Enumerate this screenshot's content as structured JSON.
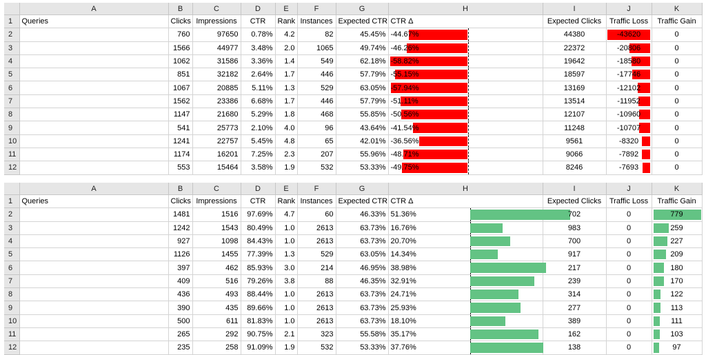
{
  "column_letters": [
    "A",
    "B",
    "C",
    "D",
    "E",
    "F",
    "G",
    "H",
    "I",
    "J",
    "K"
  ],
  "headers": [
    "Queries",
    "Clicks",
    "Impressions",
    "CTR",
    "Rank",
    "Instances",
    "Expected CTR",
    "CTR Δ",
    "Expected Clicks",
    "Traffic Loss",
    "Traffic Gain"
  ],
  "colors": {
    "negative_bar": "#ff0000",
    "positive_bar": "#63c384",
    "header_bg": "#e6e6e6",
    "gridline": "#d4d4d4"
  },
  "top_table": {
    "rows": [
      {
        "row": "2",
        "clicks": "760",
        "impressions": "97650",
        "ctr": "0.78%",
        "rank": "4.2",
        "instances": "82",
        "expected_ctr": "45.45%",
        "ctr_delta": "-44.67%",
        "expected_clicks": "44380",
        "traffic_loss": "-43620",
        "traffic_gain": "0",
        "delta_value": -44.67,
        "loss_value": -43620
      },
      {
        "row": "3",
        "clicks": "1566",
        "impressions": "44977",
        "ctr": "3.48%",
        "rank": "2.0",
        "instances": "1065",
        "expected_ctr": "49.74%",
        "ctr_delta": "-46.26%",
        "expected_clicks": "22372",
        "traffic_loss": "-20806",
        "traffic_gain": "0",
        "delta_value": -46.26,
        "loss_value": -20806
      },
      {
        "row": "4",
        "clicks": "1062",
        "impressions": "31586",
        "ctr": "3.36%",
        "rank": "1.4",
        "instances": "549",
        "expected_ctr": "62.18%",
        "ctr_delta": "-58.82%",
        "expected_clicks": "19642",
        "traffic_loss": "-18580",
        "traffic_gain": "0",
        "delta_value": -58.82,
        "loss_value": -18580
      },
      {
        "row": "5",
        "clicks": "851",
        "impressions": "32182",
        "ctr": "2.64%",
        "rank": "1.7",
        "instances": "446",
        "expected_ctr": "57.79%",
        "ctr_delta": "-55.15%",
        "expected_clicks": "18597",
        "traffic_loss": "-17746",
        "traffic_gain": "0",
        "delta_value": -55.15,
        "loss_value": -17746
      },
      {
        "row": "6",
        "clicks": "1067",
        "impressions": "20885",
        "ctr": "5.11%",
        "rank": "1.3",
        "instances": "529",
        "expected_ctr": "63.05%",
        "ctr_delta": "-57.94%",
        "expected_clicks": "13169",
        "traffic_loss": "-12102",
        "traffic_gain": "0",
        "delta_value": -57.94,
        "loss_value": -12102
      },
      {
        "row": "7",
        "clicks": "1562",
        "impressions": "23386",
        "ctr": "6.68%",
        "rank": "1.7",
        "instances": "446",
        "expected_ctr": "57.79%",
        "ctr_delta": "-51.11%",
        "expected_clicks": "13514",
        "traffic_loss": "-11952",
        "traffic_gain": "0",
        "delta_value": -51.11,
        "loss_value": -11952
      },
      {
        "row": "8",
        "clicks": "1147",
        "impressions": "21680",
        "ctr": "5.29%",
        "rank": "1.8",
        "instances": "468",
        "expected_ctr": "55.85%",
        "ctr_delta": "-50.56%",
        "expected_clicks": "12107",
        "traffic_loss": "-10960",
        "traffic_gain": "0",
        "delta_value": -50.56,
        "loss_value": -10960
      },
      {
        "row": "9",
        "clicks": "541",
        "impressions": "25773",
        "ctr": "2.10%",
        "rank": "4.0",
        "instances": "96",
        "expected_ctr": "43.64%",
        "ctr_delta": "-41.54%",
        "expected_clicks": "11248",
        "traffic_loss": "-10707",
        "traffic_gain": "0",
        "delta_value": -41.54,
        "loss_value": -10707
      },
      {
        "row": "10",
        "clicks": "1241",
        "impressions": "22757",
        "ctr": "5.45%",
        "rank": "4.8",
        "instances": "65",
        "expected_ctr": "42.01%",
        "ctr_delta": "-36.56%",
        "expected_clicks": "9561",
        "traffic_loss": "-8320",
        "traffic_gain": "0",
        "delta_value": -36.56,
        "loss_value": -8320
      },
      {
        "row": "11",
        "clicks": "1174",
        "impressions": "16201",
        "ctr": "7.25%",
        "rank": "2.3",
        "instances": "207",
        "expected_ctr": "55.96%",
        "ctr_delta": "-48.71%",
        "expected_clicks": "9066",
        "traffic_loss": "-7892",
        "traffic_gain": "0",
        "delta_value": -48.71,
        "loss_value": -7892
      },
      {
        "row": "12",
        "clicks": "553",
        "impressions": "15464",
        "ctr": "3.58%",
        "rank": "1.9",
        "instances": "532",
        "expected_ctr": "53.33%",
        "ctr_delta": "-49.75%",
        "expected_clicks": "8246",
        "traffic_loss": "-7693",
        "traffic_gain": "0",
        "delta_value": -49.75,
        "loss_value": -7693
      }
    ]
  },
  "bottom_table": {
    "rows": [
      {
        "row": "2",
        "clicks": "1481",
        "impressions": "1516",
        "ctr": "97.69%",
        "rank": "4.7",
        "instances": "60",
        "expected_ctr": "46.33%",
        "ctr_delta": "51.36%",
        "expected_clicks": "702",
        "traffic_loss": "0",
        "traffic_gain": "779",
        "delta_value": 51.36,
        "gain_value": 779
      },
      {
        "row": "3",
        "clicks": "1242",
        "impressions": "1543",
        "ctr": "80.49%",
        "rank": "1.0",
        "instances": "2613",
        "expected_ctr": "63.73%",
        "ctr_delta": "16.76%",
        "expected_clicks": "983",
        "traffic_loss": "0",
        "traffic_gain": "259",
        "delta_value": 16.76,
        "gain_value": 259
      },
      {
        "row": "4",
        "clicks": "927",
        "impressions": "1098",
        "ctr": "84.43%",
        "rank": "1.0",
        "instances": "2613",
        "expected_ctr": "63.73%",
        "ctr_delta": "20.70%",
        "expected_clicks": "700",
        "traffic_loss": "0",
        "traffic_gain": "227",
        "delta_value": 20.7,
        "gain_value": 227
      },
      {
        "row": "5",
        "clicks": "1126",
        "impressions": "1455",
        "ctr": "77.39%",
        "rank": "1.3",
        "instances": "529",
        "expected_ctr": "63.05%",
        "ctr_delta": "14.34%",
        "expected_clicks": "917",
        "traffic_loss": "0",
        "traffic_gain": "209",
        "delta_value": 14.34,
        "gain_value": 209
      },
      {
        "row": "6",
        "clicks": "397",
        "impressions": "462",
        "ctr": "85.93%",
        "rank": "3.0",
        "instances": "214",
        "expected_ctr": "46.95%",
        "ctr_delta": "38.98%",
        "expected_clicks": "217",
        "traffic_loss": "0",
        "traffic_gain": "180",
        "delta_value": 38.98,
        "gain_value": 180
      },
      {
        "row": "7",
        "clicks": "409",
        "impressions": "516",
        "ctr": "79.26%",
        "rank": "3.8",
        "instances": "88",
        "expected_ctr": "46.35%",
        "ctr_delta": "32.91%",
        "expected_clicks": "239",
        "traffic_loss": "0",
        "traffic_gain": "170",
        "delta_value": 32.91,
        "gain_value": 170
      },
      {
        "row": "8",
        "clicks": "436",
        "impressions": "493",
        "ctr": "88.44%",
        "rank": "1.0",
        "instances": "2613",
        "expected_ctr": "63.73%",
        "ctr_delta": "24.71%",
        "expected_clicks": "314",
        "traffic_loss": "0",
        "traffic_gain": "122",
        "delta_value": 24.71,
        "gain_value": 122
      },
      {
        "row": "9",
        "clicks": "390",
        "impressions": "435",
        "ctr": "89.66%",
        "rank": "1.0",
        "instances": "2613",
        "expected_ctr": "63.73%",
        "ctr_delta": "25.93%",
        "expected_clicks": "277",
        "traffic_loss": "0",
        "traffic_gain": "113",
        "delta_value": 25.93,
        "gain_value": 113
      },
      {
        "row": "10",
        "clicks": "500",
        "impressions": "611",
        "ctr": "81.83%",
        "rank": "1.0",
        "instances": "2613",
        "expected_ctr": "63.73%",
        "ctr_delta": "18.10%",
        "expected_clicks": "389",
        "traffic_loss": "0",
        "traffic_gain": "111",
        "delta_value": 18.1,
        "gain_value": 111
      },
      {
        "row": "11",
        "clicks": "265",
        "impressions": "292",
        "ctr": "90.75%",
        "rank": "2.1",
        "instances": "323",
        "expected_ctr": "55.58%",
        "ctr_delta": "35.17%",
        "expected_clicks": "162",
        "traffic_loss": "0",
        "traffic_gain": "103",
        "delta_value": 35.17,
        "gain_value": 103
      },
      {
        "row": "12",
        "clicks": "235",
        "impressions": "258",
        "ctr": "91.09%",
        "rank": "1.9",
        "instances": "532",
        "expected_ctr": "53.33%",
        "ctr_delta": "37.76%",
        "expected_clicks": "138",
        "traffic_loss": "0",
        "traffic_gain": "97",
        "delta_value": 37.76,
        "gain_value": 97
      }
    ]
  }
}
